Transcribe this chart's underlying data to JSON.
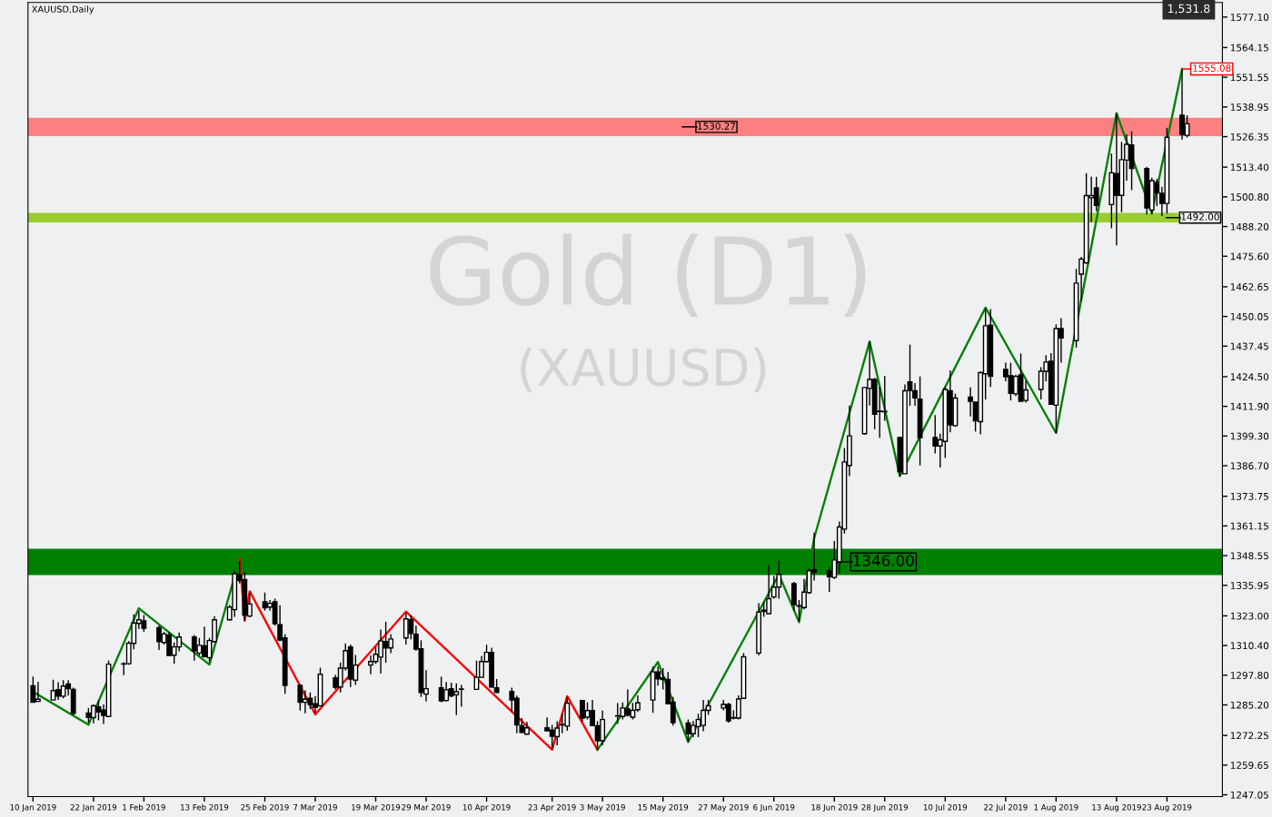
{
  "chart_data": {
    "type": "candlestick",
    "title": "Gold (D1)",
    "subtitle": "(XAUUSD)",
    "color": "#000000",
    "annotations": [
      "XAUUSD,Daily",
      "1,531.8",
      {
        "text": "1555.08",
        "x": "2019-08-26",
        "y": 1555.08
      }
    ],
    "x": [
      "2019-01-10",
      "2019-01-11",
      "2019-01-14",
      "2019-01-15",
      "2019-01-16",
      "2019-01-17",
      "2019-01-18",
      "2019-01-21",
      "2019-01-22",
      "2019-01-23",
      "2019-01-24",
      "2019-01-25",
      "2019-01-28",
      "2019-01-29",
      "2019-01-30",
      "2019-01-31",
      "2019-02-01",
      "2019-02-04",
      "2019-02-05",
      "2019-02-06",
      "2019-02-07",
      "2019-02-08",
      "2019-02-11",
      "2019-02-12",
      "2019-02-13",
      "2019-02-14",
      "2019-02-15",
      "2019-02-18",
      "2019-02-19",
      "2019-02-20",
      "2019-02-21",
      "2019-02-22",
      "2019-02-25",
      "2019-02-26",
      "2019-02-27",
      "2019-02-28",
      "2019-03-01",
      "2019-03-04",
      "2019-03-05",
      "2019-03-06",
      "2019-03-07",
      "2019-03-08",
      "2019-03-11",
      "2019-03-12",
      "2019-03-13",
      "2019-03-14",
      "2019-03-15",
      "2019-03-18",
      "2019-03-19",
      "2019-03-20",
      "2019-03-21",
      "2019-03-22",
      "2019-03-25",
      "2019-03-26",
      "2019-03-27",
      "2019-03-28",
      "2019-03-29",
      "2019-04-01",
      "2019-04-02",
      "2019-04-03",
      "2019-04-04",
      "2019-04-05",
      "2019-04-08",
      "2019-04-09",
      "2019-04-10",
      "2019-04-11",
      "2019-04-12",
      "2019-04-15",
      "2019-04-16",
      "2019-04-17",
      "2019-04-18",
      "2019-04-22",
      "2019-04-23",
      "2019-04-24",
      "2019-04-25",
      "2019-04-26",
      "2019-04-29",
      "2019-04-30",
      "2019-05-01",
      "2019-05-02",
      "2019-05-03",
      "2019-05-06",
      "2019-05-07",
      "2019-05-08",
      "2019-05-09",
      "2019-05-10",
      "2019-05-13",
      "2019-05-14",
      "2019-05-15",
      "2019-05-16",
      "2019-05-17",
      "2019-05-20",
      "2019-05-21",
      "2019-05-22",
      "2019-05-23",
      "2019-05-24",
      "2019-05-27",
      "2019-05-28",
      "2019-05-29",
      "2019-05-30",
      "2019-05-31",
      "2019-06-03",
      "2019-06-04",
      "2019-06-05",
      "2019-06-06",
      "2019-06-07",
      "2019-06-10",
      "2019-06-11",
      "2019-06-12",
      "2019-06-13",
      "2019-06-14",
      "2019-06-17",
      "2019-06-18",
      "2019-06-19",
      "2019-06-20",
      "2019-06-21",
      "2019-06-24",
      "2019-06-25",
      "2019-06-26",
      "2019-06-27",
      "2019-06-28",
      "2019-07-01",
      "2019-07-02",
      "2019-07-03",
      "2019-07-04",
      "2019-07-05",
      "2019-07-08",
      "2019-07-09",
      "2019-07-10",
      "2019-07-11",
      "2019-07-12",
      "2019-07-15",
      "2019-07-16",
      "2019-07-17",
      "2019-07-18",
      "2019-07-19",
      "2019-07-22",
      "2019-07-23",
      "2019-07-24",
      "2019-07-25",
      "2019-07-26",
      "2019-07-29",
      "2019-07-30",
      "2019-07-31",
      "2019-08-01",
      "2019-08-02",
      "2019-08-05",
      "2019-08-06",
      "2019-08-07",
      "2019-08-08",
      "2019-08-09",
      "2019-08-12",
      "2019-08-13",
      "2019-08-14",
      "2019-08-15",
      "2019-08-16",
      "2019-08-19",
      "2019-08-20",
      "2019-08-21",
      "2019-08-22",
      "2019-08-23",
      "2019-08-26",
      "2019-08-27"
    ],
    "ohlc": [
      [
        1293.3,
        1297.2,
        1286.3,
        1286.3
      ],
      [
        1286.7,
        1295.0,
        1286.7,
        1287.6
      ],
      [
        1287.3,
        1295.9,
        1287.3,
        1291.3
      ],
      [
        1291.7,
        1294.8,
        1287.3,
        1288.9
      ],
      [
        1288.9,
        1295.7,
        1288.0,
        1293.2
      ],
      [
        1294.1,
        1295.7,
        1289.2,
        1292.1
      ],
      [
        1291.8,
        1292.5,
        1280.9,
        1281.6
      ],
      [
        1281.8,
        1283.9,
        1277.7,
        1279.9
      ],
      [
        1279.8,
        1285.4,
        1277.4,
        1284.8
      ],
      [
        1284.4,
        1287.0,
        1278.7,
        1282.2
      ],
      [
        1283.0,
        1285.4,
        1277.1,
        1280.8
      ],
      [
        1280.3,
        1304.0,
        1280.0,
        1302.5
      ],
      [
        1302.5,
        1303.3,
        1297.8,
        1302.7
      ],
      [
        1302.7,
        1312.3,
        1302.3,
        1311.4
      ],
      [
        1311.3,
        1323.6,
        1308.8,
        1320.0
      ],
      [
        1319.8,
        1325.2,
        1317.5,
        1321.3
      ],
      [
        1320.9,
        1323.3,
        1316.2,
        1317.7
      ],
      [
        1318.0,
        1318.8,
        1308.5,
        1312.1
      ],
      [
        1311.7,
        1316.2,
        1310.8,
        1315.3
      ],
      [
        1314.9,
        1316.2,
        1305.9,
        1306.2
      ],
      [
        1306.3,
        1311.7,
        1302.7,
        1309.8
      ],
      [
        1309.8,
        1315.9,
        1307.9,
        1314.0
      ],
      [
        1314.0,
        1314.9,
        1304.0,
        1308.1
      ],
      [
        1307.2,
        1313.6,
        1306.2,
        1310.5
      ],
      [
        1310.3,
        1318.4,
        1305.3,
        1305.7
      ],
      [
        1305.3,
        1313.6,
        1303.4,
        1312.5
      ],
      [
        1312.1,
        1322.9,
        1311.7,
        1321.3
      ],
      [
        1321.3,
        1327.7,
        1321.1,
        1326.7
      ],
      [
        1325.6,
        1342.1,
        1322.6,
        1340.9
      ],
      [
        1340.3,
        1346.3,
        1336.7,
        1338.0
      ],
      [
        1338.4,
        1341.6,
        1320.9,
        1323.3
      ],
      [
        1322.9,
        1332.9,
        1322.4,
        1328.0
      ],
      [
        1329.0,
        1332.9,
        1325.2,
        1326.4
      ],
      [
        1326.7,
        1329.7,
        1325.2,
        1328.3
      ],
      [
        1329.0,
        1330.3,
        1318.8,
        1319.7
      ],
      [
        1319.2,
        1327.5,
        1312.3,
        1312.7
      ],
      [
        1313.6,
        1315.2,
        1289.9,
        1293.5
      ],
      [
        1293.5,
        1293.8,
        1282.8,
        1286.3
      ],
      [
        1286.3,
        1291.4,
        1281.6,
        1287.6
      ],
      [
        1288.0,
        1290.5,
        1283.5,
        1285.4
      ],
      [
        1285.7,
        1289.0,
        1281.6,
        1284.1
      ],
      [
        1284.8,
        1301.0,
        1284.8,
        1298.2
      ],
      [
        1296.7,
        1298.0,
        1291.8,
        1292.7
      ],
      [
        1292.8,
        1303.1,
        1290.5,
        1300.8
      ],
      [
        1300.8,
        1311.3,
        1299.8,
        1308.2
      ],
      [
        1309.8,
        1310.8,
        1292.8,
        1296.2
      ],
      [
        1295.7,
        1306.4,
        1293.7,
        1302.1
      ],
      [
        1302.1,
        1306.2,
        1298.2,
        1303.6
      ],
      [
        1303.6,
        1309.8,
        1302.6,
        1306.7
      ],
      [
        1305.5,
        1317.2,
        1298.5,
        1312.3
      ],
      [
        1312.1,
        1320.5,
        1303.1,
        1309.4
      ],
      [
        1309.4,
        1315.2,
        1307.2,
        1313.2
      ],
      [
        1313.6,
        1324.5,
        1310.8,
        1321.7
      ],
      [
        1321.3,
        1323.2,
        1313.0,
        1315.5
      ],
      [
        1315.2,
        1318.8,
        1308.2,
        1308.9
      ],
      [
        1309.0,
        1312.6,
        1288.6,
        1290.5
      ],
      [
        1289.8,
        1299.9,
        1286.7,
        1292.1
      ],
      [
        1292.5,
        1297.2,
        1286.4,
        1286.9
      ],
      [
        1287.1,
        1294.9,
        1286.7,
        1291.6
      ],
      [
        1292.1,
        1294.6,
        1288.5,
        1289.0
      ],
      [
        1289.5,
        1294.4,
        1280.9,
        1290.8
      ],
      [
        1291.8,
        1293.7,
        1284.4,
        1291.9
      ],
      [
        1291.8,
        1304.0,
        1291.6,
        1296.9
      ],
      [
        1296.9,
        1305.9,
        1296.7,
        1303.6
      ],
      [
        1303.6,
        1310.7,
        1303.1,
        1307.5
      ],
      [
        1307.5,
        1309.5,
        1292.5,
        1292.8
      ],
      [
        1292.5,
        1296.2,
        1290.3,
        1290.5
      ],
      [
        1290.9,
        1292.5,
        1282.2,
        1287.3
      ],
      [
        1288.0,
        1289.2,
        1273.2,
        1276.7
      ],
      [
        1276.4,
        1279.6,
        1273.2,
        1273.5
      ],
      [
        1272.8,
        1278.0,
        1272.6,
        1275.5
      ],
      [
        1275.5,
        1279.9,
        1274.1,
        1274.2
      ],
      [
        1274.5,
        1276.7,
        1266.8,
        1271.9
      ],
      [
        1271.7,
        1278.3,
        1268.1,
        1275.4
      ],
      [
        1276.7,
        1281.5,
        1273.2,
        1276.9
      ],
      [
        1276.2,
        1288.6,
        1274.2,
        1286.0
      ],
      [
        1287.1,
        1287.3,
        1278.1,
        1279.6
      ],
      [
        1280.0,
        1286.3,
        1279.0,
        1282.8
      ],
      [
        1282.8,
        1287.3,
        1276.2,
        1276.4
      ],
      [
        1276.4,
        1278.3,
        1266.2,
        1270.0
      ],
      [
        1270.0,
        1282.8,
        1268.1,
        1279.0
      ],
      [
        1280.5,
        1286.0,
        1277.1,
        1280.6
      ],
      [
        1280.3,
        1286.3,
        1279.0,
        1283.9
      ],
      [
        1283.5,
        1291.8,
        1280.3,
        1280.9
      ],
      [
        1280.0,
        1286.1,
        1279.0,
        1282.9
      ],
      [
        1283.2,
        1289.3,
        1282.2,
        1286.1
      ],
      [
        1287.3,
        1301.5,
        1281.8,
        1299.2
      ],
      [
        1299.2,
        1301.5,
        1293.4,
        1296.3
      ],
      [
        1296.7,
        1300.8,
        1291.8,
        1296.0
      ],
      [
        1296.0,
        1299.2,
        1285.7,
        1285.7
      ],
      [
        1286.4,
        1288.6,
        1276.4,
        1277.7
      ],
      [
        1277.5,
        1279.0,
        1269.5,
        1273.0
      ],
      [
        1273.0,
        1278.4,
        1271.5,
        1276.5
      ],
      [
        1276.0,
        1281.5,
        1271.5,
        1279.0
      ],
      [
        1276.5,
        1287.3,
        1274.0,
        1282.9
      ],
      [
        1282.9,
        1287.3,
        1281.0,
        1284.8
      ],
      [
        1283.9,
        1287.3,
        1282.9,
        1285.4
      ],
      [
        1285.4,
        1286.1,
        1277.7,
        1278.4
      ],
      [
        1279.6,
        1282.9,
        1279.0,
        1279.8
      ],
      [
        1279.6,
        1289.3,
        1279.0,
        1287.7
      ],
      [
        1288.0,
        1307.2,
        1287.7,
        1305.6
      ],
      [
        1307.2,
        1328.4,
        1306.2,
        1324.6
      ],
      [
        1324.9,
        1329.0,
        1322.6,
        1325.4
      ],
      [
        1323.9,
        1344.4,
        1323.9,
        1330.3
      ],
      [
        1331.0,
        1339.9,
        1330.3,
        1335.2
      ],
      [
        1335.2,
        1346.4,
        1330.3,
        1340.6
      ],
      [
        1336.7,
        1337.4,
        1325.2,
        1327.8
      ],
      [
        1327.3,
        1329.7,
        1320.7,
        1327.1
      ],
      [
        1326.5,
        1338.7,
        1325.8,
        1333.1
      ],
      [
        1332.9,
        1343.1,
        1332.3,
        1342.1
      ],
      [
        1342.5,
        1358.3,
        1338.0,
        1341.6
      ],
      [
        1342.1,
        1343.8,
        1333.2,
        1339.6
      ],
      [
        1339.3,
        1354.7,
        1338.7,
        1346.7
      ],
      [
        1345.7,
        1363.0,
        1341.2,
        1360.7
      ],
      [
        1359.8,
        1394.2,
        1357.9,
        1388.3
      ],
      [
        1386.8,
        1412.2,
        1382.3,
        1399.4
      ],
      [
        1400.3,
        1420.1,
        1399.9,
        1419.9
      ],
      [
        1419.5,
        1439.4,
        1412.2,
        1423.3
      ],
      [
        1423.3,
        1424.0,
        1402.2,
        1408.6
      ],
      [
        1409.9,
        1420.1,
        1398.6,
        1409.7
      ],
      [
        1409.6,
        1424.9,
        1405.8,
        1409.6
      ],
      [
        1398.7,
        1399.0,
        1382.3,
        1384.2
      ],
      [
        1383.3,
        1421.2,
        1383.3,
        1418.5
      ],
      [
        1422.3,
        1438.1,
        1412.1,
        1418.6
      ],
      [
        1418.5,
        1421.8,
        1412.1,
        1415.5
      ],
      [
        1415.0,
        1424.6,
        1386.8,
        1398.6
      ],
      [
        1398.7,
        1408.2,
        1391.9,
        1395.1
      ],
      [
        1395.1,
        1400.3,
        1385.9,
        1397.7
      ],
      [
        1397.0,
        1420.1,
        1390.0,
        1419.1
      ],
      [
        1418.5,
        1427.2,
        1400.9,
        1404.0
      ],
      [
        1403.7,
        1417.3,
        1403.2,
        1415.4
      ],
      [
        1415.8,
        1419.9,
        1407.6,
        1414.0
      ],
      [
        1413.7,
        1413.7,
        1401.2,
        1405.8
      ],
      [
        1405.4,
        1426.8,
        1400.0,
        1426.2
      ],
      [
        1425.7,
        1453.5,
        1414.8,
        1446.1
      ],
      [
        1446.4,
        1453.2,
        1420.1,
        1424.6
      ],
      [
        1427.6,
        1430.4,
        1422.5,
        1424.4
      ],
      [
        1425.0,
        1430.4,
        1414.4,
        1417.4
      ],
      [
        1417.2,
        1425.3,
        1416.3,
        1424.6
      ],
      [
        1425.3,
        1434.3,
        1414.0,
        1414.0
      ],
      [
        1414.4,
        1422.7,
        1413.5,
        1418.9
      ],
      [
        1419.1,
        1428.5,
        1414.8,
        1426.8
      ],
      [
        1426.8,
        1433.6,
        1422.5,
        1430.7
      ],
      [
        1431.0,
        1434.5,
        1412.8,
        1412.8
      ],
      [
        1412.4,
        1446.7,
        1400.6,
        1444.9
      ],
      [
        1444.9,
        1449.3,
        1430.4,
        1440.9
      ],
      [
        1439.8,
        1470.2,
        1436.8,
        1464.2
      ],
      [
        1468.0,
        1475.3,
        1456.4,
        1474.4
      ],
      [
        1472.8,
        1510.9,
        1472.4,
        1501.3
      ],
      [
        1500.4,
        1509.3,
        1490.1,
        1501.3
      ],
      [
        1504.6,
        1509.3,
        1494.8,
        1497.2
      ],
      [
        1497.5,
        1519.2,
        1487.5,
        1511.0
      ],
      [
        1510.7,
        1536.3,
        1480.2,
        1501.4
      ],
      [
        1501.4,
        1524.1,
        1494.3,
        1516.6
      ],
      [
        1516.4,
        1527.3,
        1507.7,
        1523.1
      ],
      [
        1522.8,
        1528.6,
        1503.6,
        1512.9
      ],
      [
        1512.8,
        1513.6,
        1493.3,
        1496.1
      ],
      [
        1495.2,
        1508.9,
        1493.3,
        1507.7
      ],
      [
        1506.9,
        1508.4,
        1496.9,
        1502.5
      ],
      [
        1502.3,
        1505.1,
        1492.7,
        1498.0
      ],
      [
        1498.0,
        1530.1,
        1493.7,
        1526.1
      ],
      [
        1535.4,
        1555.08,
        1525.1,
        1527.3
      ],
      [
        1526.9,
        1535.4,
        1526.0,
        1531.8
      ]
    ],
    "series": [
      {
        "type": "line",
        "color": "#008000",
        "x": [
          "2019-01-10",
          "2019-01-21",
          "2019-01-31",
          "2019-02-14",
          "2019-02-20"
        ],
        "values": [
          1290.8,
          1276.8,
          1326.2,
          1302.3,
          1347.2
        ]
      },
      {
        "type": "line",
        "color": "#ff0000",
        "x": [
          "2019-02-20",
          "2019-02-21",
          "2019-02-22",
          "2019-03-07",
          "2019-03-25",
          "2019-04-23",
          "2019-04-26",
          "2019-05-02"
        ],
        "values": [
          1347.2,
          1320.9,
          1333.4,
          1281.2,
          1324.8,
          1266.2,
          1288.9,
          1266.2
        ]
      },
      {
        "type": "line",
        "color": "#008000",
        "x": [
          "2019-05-02",
          "2019-05-14",
          "2019-05-20",
          "2019-06-07",
          "2019-06-11",
          "2019-06-14",
          "2019-06-25",
          "2019-07-01",
          "2019-07-18",
          "2019-08-01",
          "2019-08-13",
          "2019-08-20",
          "2019-08-26"
        ],
        "values": [
          1266.2,
          1303.4,
          1269.5,
          1340.6,
          1320.3,
          1356.0,
          1439.4,
          1382.3,
          1453.8,
          1400.6,
          1536.3,
          1494.0,
          1555.1
        ]
      }
    ],
    "bands": [
      {
        "axis": "y",
        "from": 1526.6,
        "to": 1534.4,
        "label": "1530.27",
        "color": "#ff8080"
      },
      {
        "axis": "y",
        "from": 1340.3,
        "to": 1351.5,
        "label": "1346.00",
        "color": "#008000"
      },
      {
        "axis": "y",
        "from": 1490.0,
        "to": 1494.0,
        "label": "1492.00",
        "color": "#9acd32"
      }
    ],
    "xlim": [
      "2019-01-09",
      "2019-09-03"
    ],
    "xticks": [
      {
        "value": "2019-01-10",
        "label": "10 Jan 2019"
      },
      {
        "value": "2019-01-22",
        "label": "22 Jan 2019"
      },
      {
        "value": "2019-02-01",
        "label": "1 Feb 2019"
      },
      {
        "value": "2019-02-13",
        "label": "13 Feb 2019"
      },
      {
        "value": "2019-02-25",
        "label": "25 Feb 2019"
      },
      {
        "value": "2019-03-07",
        "label": "7 Mar 2019"
      },
      {
        "value": "2019-03-19",
        "label": "19 Mar 2019"
      },
      {
        "value": "2019-03-29",
        "label": "29 Mar 2019"
      },
      {
        "value": "2019-04-10",
        "label": "10 Apr 2019"
      },
      {
        "value": "2019-04-23",
        "label": "23 Apr 2019"
      },
      {
        "value": "2019-05-03",
        "label": "3 May 2019"
      },
      {
        "value": "2019-05-15",
        "label": "15 May 2019"
      },
      {
        "value": "2019-05-27",
        "label": "27 May 2019"
      },
      {
        "value": "2019-06-06",
        "label": "6 Jun 2019"
      },
      {
        "value": "2019-06-18",
        "label": "18 Jun 2019"
      },
      {
        "value": "2019-06-28",
        "label": "28 Jun 2019"
      },
      {
        "value": "2019-07-10",
        "label": "10 Jul 2019"
      },
      {
        "value": "2019-07-22",
        "label": "22 Jul 2019"
      },
      {
        "value": "2019-08-01",
        "label": "1 Aug 2019"
      },
      {
        "value": "2019-08-13",
        "label": "13 Aug 2019"
      },
      {
        "value": "2019-08-23",
        "label": "23 Aug 2019"
      }
    ],
    "ylim": [
      1246.3,
      1583.3
    ],
    "yticks": [
      {
        "value": 1247.05,
        "label": "1247.05"
      },
      {
        "value": 1259.65,
        "label": "1259.65"
      },
      {
        "value": 1272.25,
        "label": "1272.25"
      },
      {
        "value": 1285.2,
        "label": "1285.20"
      },
      {
        "value": 1297.8,
        "label": "1297.80"
      },
      {
        "value": 1310.4,
        "label": "1310.40"
      },
      {
        "value": 1323.0,
        "label": "1323.00"
      },
      {
        "value": 1335.95,
        "label": "1335.95"
      },
      {
        "value": 1348.55,
        "label": "1348.55"
      },
      {
        "value": 1361.15,
        "label": "1361.15"
      },
      {
        "value": 1373.75,
        "label": "1373.75"
      },
      {
        "value": 1386.7,
        "label": "1386.70"
      },
      {
        "value": 1399.3,
        "label": "1399.30"
      },
      {
        "value": 1411.9,
        "label": "1411.90"
      },
      {
        "value": 1424.5,
        "label": "1424.50"
      },
      {
        "value": 1437.45,
        "label": "1437.45"
      },
      {
        "value": 1450.05,
        "label": "1450.05"
      },
      {
        "value": 1462.65,
        "label": "1462.65"
      },
      {
        "value": 1475.6,
        "label": "1475.60"
      },
      {
        "value": 1488.2,
        "label": "1488.20"
      },
      {
        "value": 1500.8,
        "label": "1500.80"
      },
      {
        "value": 1513.4,
        "label": "1513.40"
      },
      {
        "value": 1526.35,
        "label": "1526.35"
      },
      {
        "value": 1538.95,
        "label": "1538.95"
      },
      {
        "value": 1551.55,
        "label": "1551.55"
      },
      {
        "value": 1564.15,
        "label": "1564.15"
      },
      {
        "value": 1577.1,
        "label": "1577.10"
      }
    ]
  }
}
